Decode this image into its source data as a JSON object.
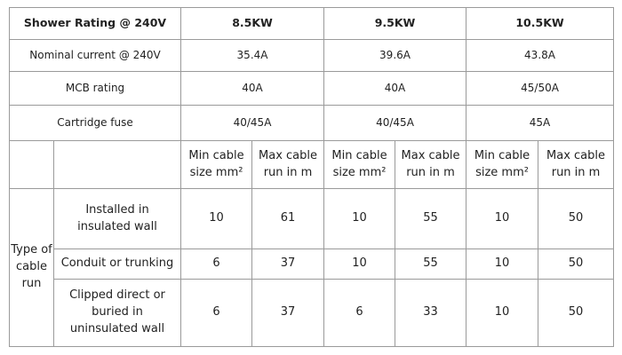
{
  "table": {
    "header": [
      "Shower Rating @ 240V",
      "8.5KW",
      "9.5KW",
      "10.5KW"
    ],
    "spec_rows": [
      [
        "Nominal current @ 240V",
        "35.4A",
        "39.6A",
        "43.8A"
      ],
      [
        "MCB rating",
        "40A",
        "40A",
        "45/50A"
      ],
      [
        "Cartridge fuse",
        "40/45A",
        "40/45A",
        "45A"
      ]
    ],
    "subheader": [
      "Min cable size mm²",
      "Max cable run in m",
      "Min cable size mm²",
      "Max cable run in m",
      "Min cable size mm²",
      "Max cable run in m"
    ],
    "group_label": "Type of cable run",
    "cable_rows": [
      [
        "Installed in insulated wall",
        "10",
        "61",
        "10",
        "55",
        "10",
        "50"
      ],
      [
        "Conduit or trunking",
        "6",
        "37",
        "10",
        "55",
        "10",
        "50"
      ],
      [
        "Clipped direct or buried in uninsulated wall",
        "6",
        "37",
        "6",
        "33",
        "10",
        "50"
      ]
    ]
  }
}
